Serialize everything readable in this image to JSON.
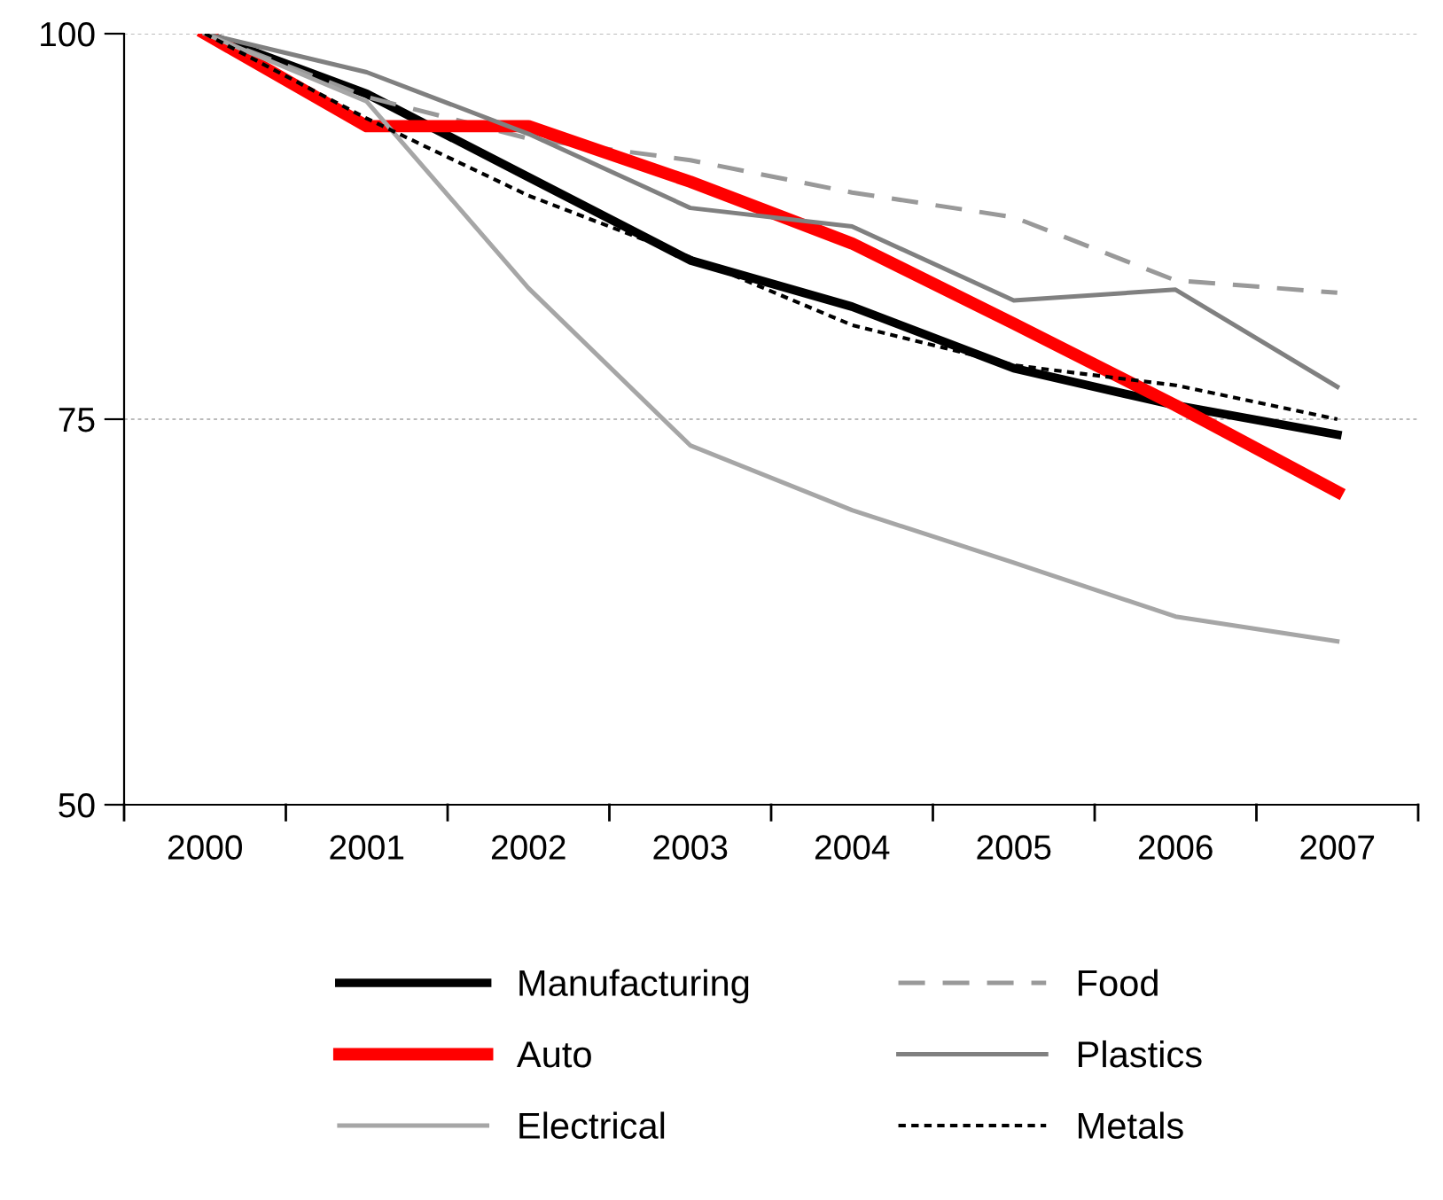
{
  "chart_data": {
    "type": "line",
    "categories": [
      "2000",
      "2001",
      "2002",
      "2003",
      "2004",
      "2005",
      "2006",
      "2007"
    ],
    "ylim": [
      50,
      100
    ],
    "yticks": [
      50,
      75,
      100
    ],
    "grid": "y",
    "legend": "bottom",
    "series": [
      {
        "name": "Manufacturing",
        "color": "#000000",
        "line_style": "solid",
        "values": [
          100,
          96.1,
          90.7,
          85.3,
          82.3,
          78.3,
          75.9,
          74.0
        ]
      },
      {
        "name": "Food",
        "color": "#999999",
        "line_style": "dashed",
        "values": [
          100,
          95.9,
          93.2,
          91.8,
          89.7,
          88.1,
          84.0,
          83.2
        ]
      },
      {
        "name": "Auto",
        "color": "#ff0000",
        "line_style": "solid",
        "values": [
          100,
          94.0,
          94.0,
          90.4,
          86.4,
          81.2,
          75.9,
          70.3
        ]
      },
      {
        "name": "Plastics",
        "color": "#808080",
        "line_style": "solid",
        "values": [
          100,
          97.5,
          93.5,
          88.7,
          87.5,
          82.7,
          83.4,
          77.1
        ]
      },
      {
        "name": "Electrical",
        "color": "#a6a6a6",
        "line_style": "solid",
        "values": [
          100,
          95.6,
          83.5,
          73.3,
          69.1,
          65.7,
          62.2,
          60.6
        ]
      },
      {
        "name": "Metals",
        "color": "#000000",
        "line_style": "dotted",
        "values": [
          100,
          94.5,
          89.5,
          85.5,
          81.1,
          78.5,
          77.2,
          75.0
        ]
      }
    ]
  }
}
